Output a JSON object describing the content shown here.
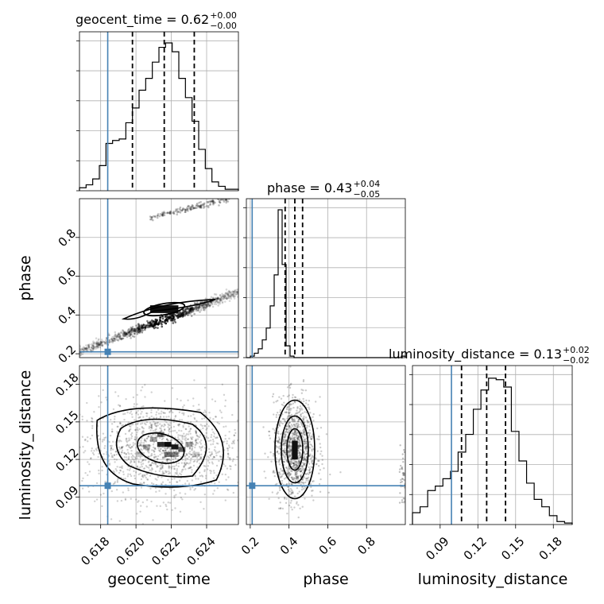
{
  "chart_data": {
    "type": "corner",
    "parameters": [
      "geocent_time",
      "phase",
      "luminosity_distance"
    ],
    "ranges": {
      "geocent_time": [
        0.6168,
        0.6258
      ],
      "phase": [
        0.18,
        1.0
      ],
      "luminosity_distance": [
        0.068,
        0.195
      ]
    },
    "ticks": {
      "geocent_time": [
        "0.618",
        "0.620",
        "0.622",
        "0.624"
      ],
      "phase": [
        "0.2",
        "0.4",
        "0.6",
        "0.8"
      ],
      "luminosity_distance": [
        "0.09",
        "0.12",
        "0.15",
        "0.18"
      ]
    },
    "truths": {
      "geocent_time": 0.6184,
      "phase": 0.21,
      "luminosity_distance": 0.099
    },
    "titles": [
      {
        "param": "geocent_time",
        "text": "geocent_time = 0.62",
        "upper": "+0.00",
        "lower": "−0.00"
      },
      {
        "param": "phase",
        "text": "phase = 0.43",
        "upper": "+0.04",
        "lower": "−0.05"
      },
      {
        "param": "luminosity_distance",
        "text": "luminosity_distance = 0.13",
        "upper": "+0.02",
        "lower": "−0.02"
      }
    ],
    "quantiles": {
      "geocent_time": [
        0.6198,
        0.6216,
        0.6233
      ],
      "phase": [
        0.38,
        0.43,
        0.47
      ],
      "luminosity_distance": [
        0.107,
        0.127,
        0.142
      ]
    },
    "histograms": {
      "geocent_time": [
        0.02,
        0.04,
        0.08,
        0.17,
        0.32,
        0.34,
        0.35,
        0.46,
        0.56,
        0.68,
        0.76,
        0.87,
        0.97,
        1.0,
        0.94,
        0.76,
        0.63,
        0.47,
        0.28,
        0.15,
        0.06,
        0.03,
        0.01,
        0.01
      ],
      "phase": [
        0.0,
        0.01,
        0.03,
        0.06,
        0.12,
        0.2,
        0.35,
        0.56,
        1.0,
        0.63,
        0.08,
        0.01,
        0.0,
        0.0,
        0.0,
        0.0,
        0.0,
        0.0,
        0.0,
        0.0,
        0.0,
        0.0,
        0.0,
        0.0,
        0.0,
        0.0,
        0.0,
        0.0,
        0.0,
        0.0,
        0.0,
        0.0,
        0.0,
        0.0,
        0.0,
        0.0,
        0.0,
        0.0,
        0.0,
        0.01
      ],
      "luminosity_distance": [
        0.08,
        0.12,
        0.23,
        0.26,
        0.31,
        0.36,
        0.49,
        0.61,
        0.78,
        0.91,
        0.99,
        0.98,
        0.93,
        0.63,
        0.43,
        0.28,
        0.17,
        0.12,
        0.06,
        0.02,
        0.01
      ]
    },
    "grid": true,
    "colors": {
      "truth": "#4682b4",
      "hist": "#000000",
      "grid": "#b0b0b0"
    }
  }
}
